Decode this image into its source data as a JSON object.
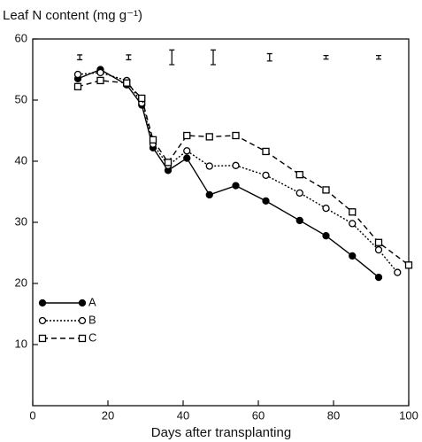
{
  "chart_data": {
    "type": "line",
    "title": "Leaf N content (mg g⁻¹)",
    "x_label": "Days after transplanting",
    "xlim": [
      0,
      100
    ],
    "xticks": [
      0,
      20,
      40,
      60,
      80,
      100
    ],
    "ylim": [
      0,
      60
    ],
    "yticks": [
      10,
      20,
      30,
      40,
      50,
      60
    ],
    "series": [
      {
        "name": "A",
        "color": "#000000",
        "marker": "circle",
        "marker_fill": true,
        "line_style": "solid",
        "x": [
          12,
          18,
          25,
          29,
          32,
          36,
          41,
          47,
          54,
          62,
          71,
          78,
          85,
          92
        ],
        "values": [
          53.5,
          55,
          52.5,
          49.2,
          42.2,
          38.5,
          40.5,
          34.5,
          36,
          33.5,
          30.3,
          27.8,
          24.5,
          21
        ]
      },
      {
        "name": "B",
        "color": "#000000",
        "marker": "circle",
        "marker_fill": false,
        "line_style": "dotted",
        "x": [
          12,
          18,
          25,
          29,
          32,
          36,
          41,
          47,
          54,
          62,
          71,
          78,
          85,
          92,
          97
        ],
        "values": [
          54.2,
          54.5,
          53.2,
          49.5,
          42.8,
          39.3,
          41.7,
          39.2,
          39.3,
          37.7,
          34.8,
          32.3,
          29.8,
          25.5,
          21.8
        ]
      },
      {
        "name": "C",
        "color": "#000000",
        "marker": "square",
        "marker_fill": false,
        "line_style": "dashed",
        "x": [
          12,
          18,
          25,
          29,
          32,
          36,
          41,
          47,
          54,
          62,
          71,
          78,
          85,
          92,
          100
        ],
        "values": [
          52.2,
          53.2,
          52.8,
          50.3,
          43.5,
          39.8,
          44.2,
          44,
          44.2,
          41.6,
          37.8,
          35.3,
          31.7,
          26.7,
          23
        ]
      }
    ],
    "error_bars": {
      "x": [
        12.5,
        25.5,
        37,
        48,
        63,
        78,
        92
      ],
      "y": [
        57,
        57,
        57,
        57,
        57,
        57,
        57
      ],
      "err": [
        0.4,
        0.4,
        1.2,
        1.2,
        0.6,
        0.3,
        0.3
      ]
    },
    "legend": "lower left"
  }
}
